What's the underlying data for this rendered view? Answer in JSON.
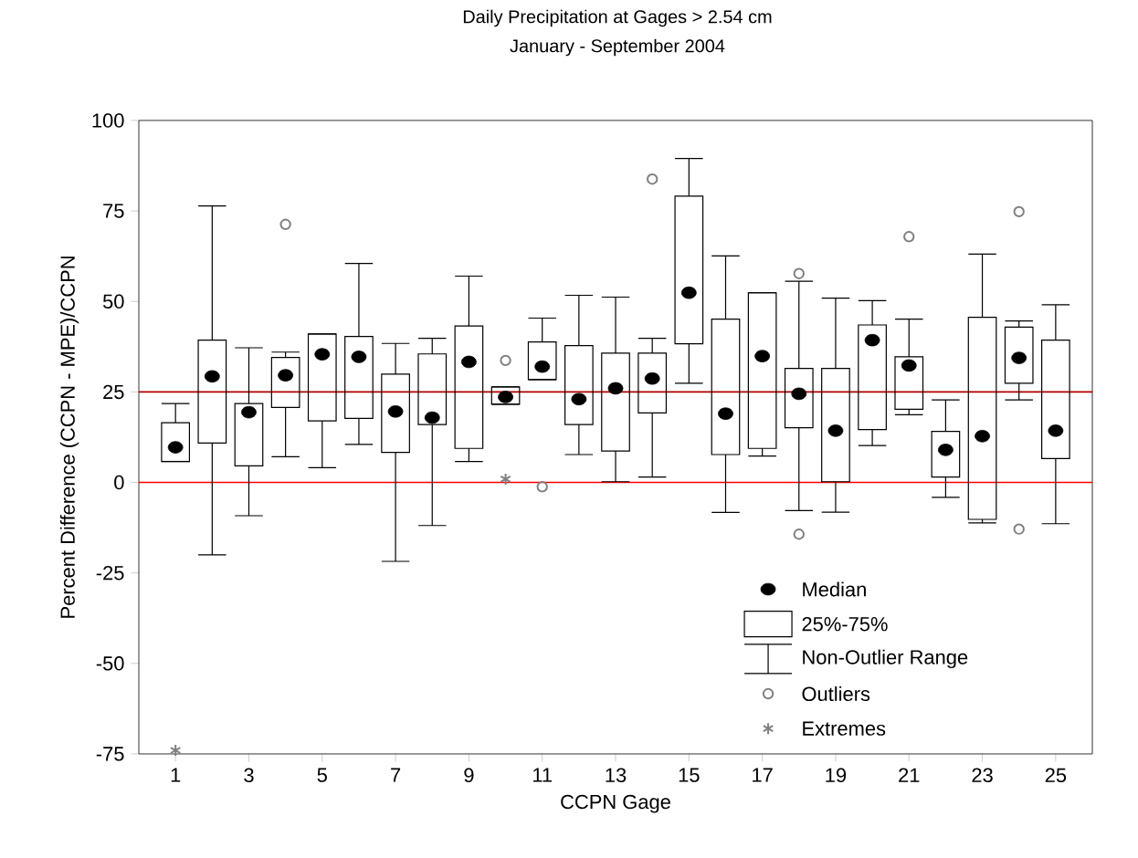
{
  "chart_data": {
    "type": "box",
    "title": "Daily Precipitation at Gages > 2.54 cm",
    "subtitle": "January - September 2004",
    "xlabel": "CCPN Gage",
    "ylabel": "Percent Difference (CCPN - MPE)/CCPN",
    "xlim": [
      0,
      26
    ],
    "xticks": [
      1,
      3,
      5,
      7,
      9,
      11,
      13,
      15,
      17,
      19,
      21,
      23,
      25
    ],
    "ylim": [
      -75,
      100
    ],
    "yticks": [
      -75,
      -50,
      -25,
      0,
      25,
      50,
      75,
      100
    ],
    "legend": "bottom right",
    "annotations": [
      "25%-75%",
      "Non-Outlier Range",
      "Outliers"
    ],
    "ref_lines": [
      {
        "axis": "y",
        "value": 0,
        "color": "#ff0000"
      },
      {
        "axis": "y",
        "value": 25,
        "color": "#b00000"
      }
    ],
    "series": [
      {
        "type": "box",
        "name": "Median",
        "color": "#000000",
        "x": [
          1,
          2,
          3,
          4,
          5,
          6,
          7,
          8,
          9,
          10,
          11,
          12,
          13,
          14,
          15,
          16,
          17,
          18,
          19,
          20,
          21,
          22,
          23,
          24,
          25
        ],
        "boxes": [
          {
            "low": 5.8,
            "q1": 5.8,
            "median": 9.7,
            "q3": 16.5,
            "high": 21.8
          },
          {
            "low": -20,
            "q1": 10.9,
            "median": 29.3,
            "q3": 39.3,
            "high": 76.4
          },
          {
            "low": -9.2,
            "q1": 4.6,
            "median": 19.4,
            "q3": 21.8,
            "high": 37.2
          },
          {
            "low": 7.1,
            "q1": 20.7,
            "median": 29.6,
            "q3": 34.5,
            "high": 36,
            "outliers": [
              71.3
            ]
          },
          {
            "low": 4.1,
            "q1": 17,
            "median": 35.4,
            "q3": 41,
            "high": 41
          },
          {
            "low": 10.5,
            "q1": 17.7,
            "median": 34.7,
            "q3": 40.3,
            "high": 60.5
          },
          {
            "low": -21.8,
            "q1": 8.3,
            "median": 19.6,
            "q3": 29.9,
            "high": 38.4
          },
          {
            "low": -11.9,
            "q1": 16,
            "median": 17.9,
            "q3": 35.5,
            "high": 39.8
          },
          {
            "low": 5.8,
            "q1": 9.4,
            "median": 33.3,
            "q3": 43.2,
            "high": 57
          },
          {
            "low": 21.6,
            "q1": 21.6,
            "median": 23.6,
            "q3": 26.4,
            "high": 26.4,
            "outliers": [
              33.7
            ]
          },
          {
            "low": 28.4,
            "q1": 28.4,
            "median": 32,
            "q3": 38.8,
            "high": 45.4,
            "outliers": [
              -1.2
            ]
          },
          {
            "low": 7.7,
            "q1": 16,
            "median": 23,
            "q3": 37.8,
            "high": 51.7
          },
          {
            "low": 0.2,
            "q1": 8.7,
            "median": 26,
            "q3": 35.7,
            "high": 51.2
          },
          {
            "low": 1.5,
            "q1": 19.2,
            "median": 28.7,
            "q3": 35.7,
            "high": 39.8,
            "outliers": [
              83.8
            ]
          },
          {
            "low": 27.4,
            "q1": 38.3,
            "median": 52.4,
            "q3": 79.1,
            "high": 89.5
          },
          {
            "low": -8.3,
            "q1": 7.7,
            "median": 19,
            "q3": 45.1,
            "high": 62.6
          },
          {
            "low": 7.3,
            "q1": 9.4,
            "median": 34.9,
            "q3": 52.4,
            "high": 52.4
          },
          {
            "low": -7.8,
            "q1": 15.1,
            "median": 24.5,
            "q3": 31.5,
            "high": 55.6,
            "outliers": [
              57.7,
              -14.3
            ]
          },
          {
            "low": -8.2,
            "q1": 0.2,
            "median": 14.3,
            "q3": 31.5,
            "high": 50.9
          },
          {
            "low": 10.2,
            "q1": 14.6,
            "median": 39.3,
            "q3": 43.5,
            "high": 50.2
          },
          {
            "low": 18.7,
            "q1": 20.2,
            "median": 32.3,
            "q3": 34.7,
            "high": 45.1,
            "outliers": [
              67.9
            ]
          },
          {
            "low": -4.1,
            "q1": 1.5,
            "median": 9,
            "q3": 14.1,
            "high": 22.8
          },
          {
            "low": -11.2,
            "q1": -10.2,
            "median": 12.8,
            "q3": 45.6,
            "high": 63.1
          },
          {
            "low": 22.8,
            "q1": 27.4,
            "median": 34.4,
            "q3": 42.9,
            "high": 44.6,
            "outliers": [
              74.8,
              -12.9
            ]
          },
          {
            "low": -11.4,
            "q1": 6.6,
            "median": 14.3,
            "q3": 39.3,
            "high": 49.1
          }
        ]
      },
      {
        "type": "scatter",
        "name": "Extremes",
        "color": "#808080",
        "marker": "cross",
        "x": [
          1,
          10
        ],
        "values": [
          -74,
          0.9
        ]
      }
    ]
  }
}
